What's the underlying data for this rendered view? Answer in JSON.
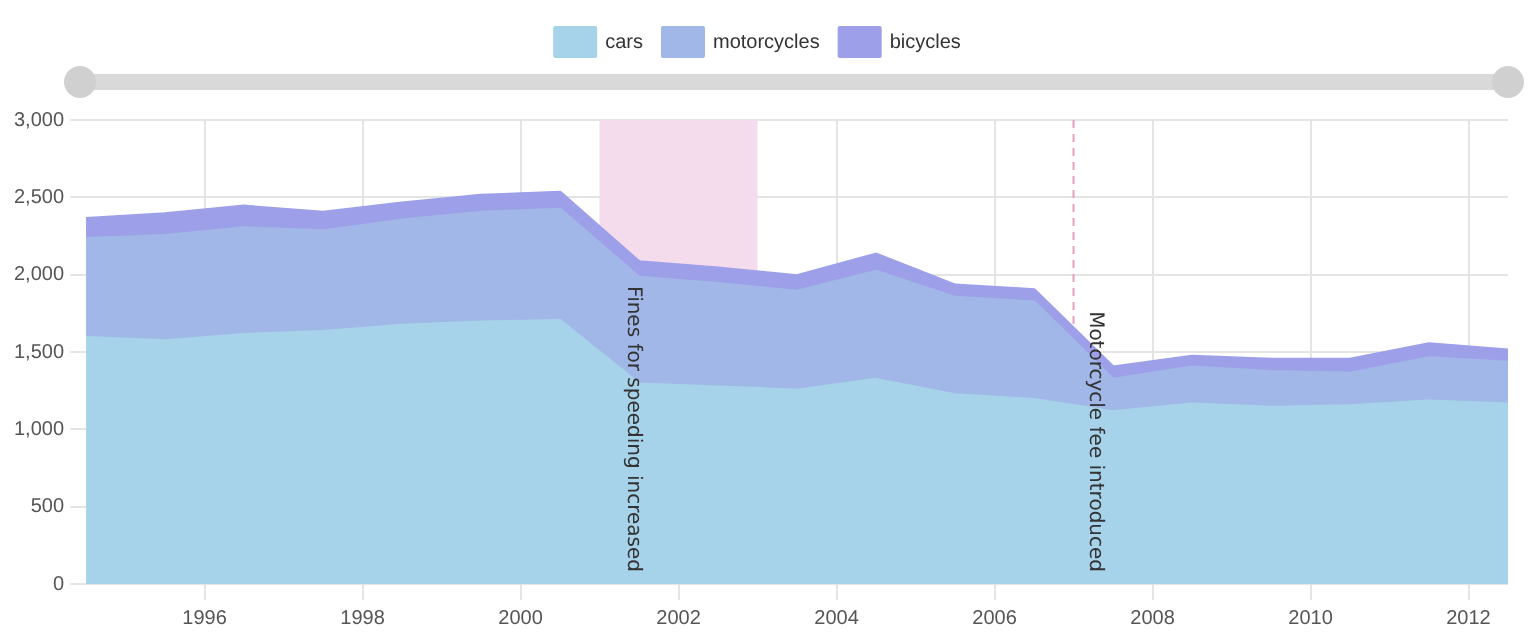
{
  "chart_data": {
    "type": "area",
    "stacked": true,
    "x": [
      1994.5,
      1995.5,
      1996.5,
      1997.5,
      1998.5,
      1999.5,
      2000.5,
      2001.5,
      2002.5,
      2003.5,
      2004.5,
      2005.5,
      2006.5,
      2007.5,
      2008.5,
      2009.5,
      2010.5,
      2011.5,
      2012.5
    ],
    "series": [
      {
        "name": "cars",
        "color": "#a6d3ea",
        "values": [
          1590,
          1570,
          1610,
          1630,
          1670,
          1690,
          1700,
          1290,
          1270,
          1250,
          1320,
          1220,
          1190,
          1110,
          1160,
          1140,
          1150,
          1180,
          1160
        ]
      },
      {
        "name": "motorcycles",
        "color": "#a1b7e7",
        "values": [
          640,
          680,
          690,
          650,
          680,
          710,
          720,
          690,
          670,
          640,
          700,
          630,
          630,
          210,
          240,
          230,
          210,
          280,
          270
        ]
      },
      {
        "name": "bicycles",
        "color": "#9d9fe8",
        "values": [
          130,
          140,
          140,
          120,
          110,
          110,
          110,
          100,
          100,
          100,
          110,
          80,
          80,
          80,
          70,
          80,
          90,
          90,
          80
        ]
      }
    ],
    "xlim": [
      1994.5,
      2012.5
    ],
    "xticks": [
      1996,
      1998,
      2000,
      2002,
      2004,
      2006,
      2008,
      2010,
      2012
    ],
    "ylim": [
      0,
      3000
    ],
    "yticks": [
      0,
      500,
      {
        "value": 1000,
        "label": "1,000"
      },
      {
        "value": 1500,
        "label": "1,500"
      },
      {
        "value": 2000,
        "label": "2,000"
      },
      {
        "value": 2500,
        "label": "2,500"
      },
      {
        "value": 3000,
        "label": "3,000"
      }
    ],
    "bands": [
      {
        "axis": "x",
        "from": 2001,
        "to": 2003,
        "label": "Fines for speeding increased",
        "color": "#f5dcec"
      }
    ],
    "ref_lines": [
      {
        "axis": "x",
        "value": 2007,
        "label": "Motorcycle fee introduced",
        "color": "#e8a0c0",
        "line_style": "dashed"
      }
    ],
    "grid": true,
    "legend": "top",
    "marker": "none"
  }
}
